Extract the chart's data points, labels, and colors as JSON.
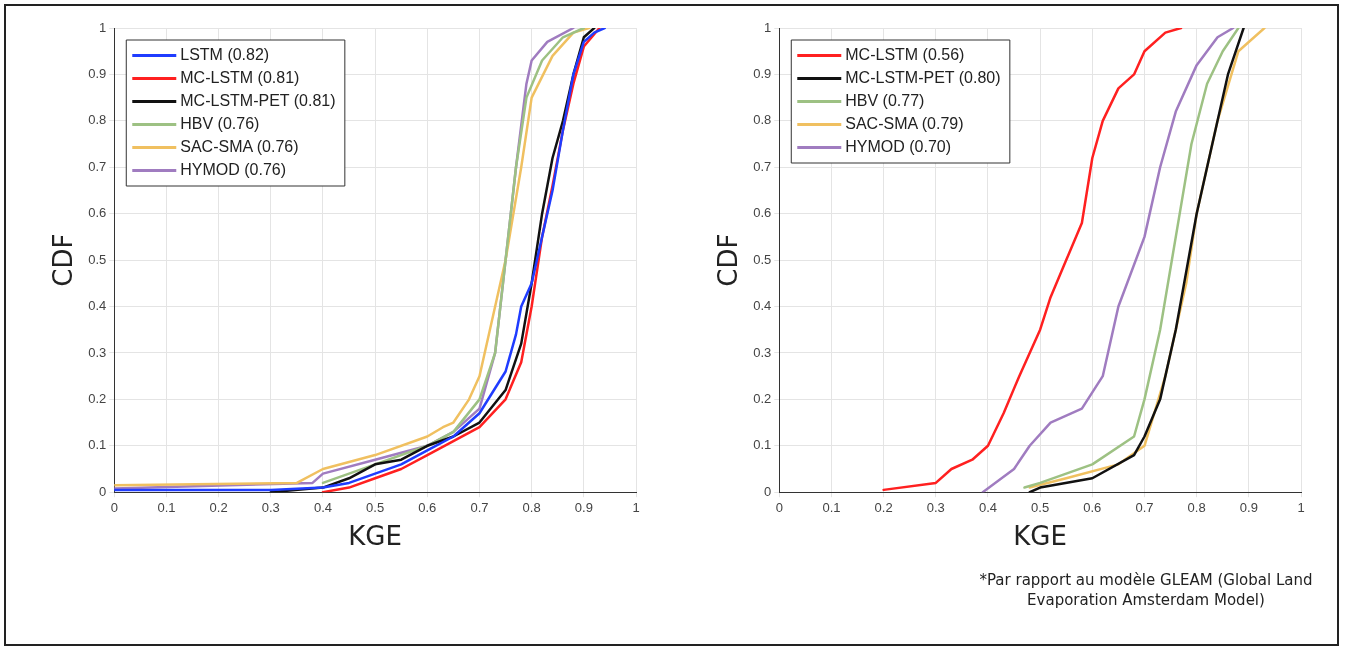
{
  "chart_data": [
    {
      "type": "line",
      "xlabel": "KGE",
      "ylabel": "CDF",
      "xlim": [
        0,
        1
      ],
      "ylim": [
        0,
        1
      ],
      "xticks": [
        0,
        0.1,
        0.2,
        0.3,
        0.4,
        0.5,
        0.6,
        0.7,
        0.8,
        0.9,
        1
      ],
      "yticks": [
        0,
        0.1,
        0.2,
        0.3,
        0.4,
        0.5,
        0.6,
        0.7,
        0.8,
        0.9,
        1
      ],
      "grid": true,
      "legend": "top left",
      "marker": "none",
      "line_style": "solid",
      "series": [
        {
          "name": "LSTM (0.82)",
          "color": "#1f3cff",
          "x": [
            0,
            0.3,
            0.4,
            0.45,
            0.5,
            0.55,
            0.6,
            0.65,
            0.7,
            0.75,
            0.77,
            0.78,
            0.8,
            0.82,
            0.84,
            0.86,
            0.88,
            0.9,
            0.92,
            0.94
          ],
          "values": [
            0.005,
            0.005,
            0.01,
            0.02,
            0.04,
            0.06,
            0.09,
            0.12,
            0.17,
            0.26,
            0.34,
            0.4,
            0.45,
            0.55,
            0.65,
            0.78,
            0.9,
            0.97,
            0.99,
            1
          ]
        },
        {
          "name": "MC-LSTM (0.81)",
          "color": "#ff2020",
          "x": [
            0.4,
            0.45,
            0.5,
            0.55,
            0.6,
            0.65,
            0.7,
            0.75,
            0.78,
            0.8,
            0.82,
            0.84,
            0.86,
            0.88,
            0.9,
            0.93
          ],
          "values": [
            0,
            0.01,
            0.03,
            0.05,
            0.08,
            0.11,
            0.14,
            0.2,
            0.28,
            0.4,
            0.55,
            0.66,
            0.78,
            0.88,
            0.96,
            1
          ]
        },
        {
          "name": "MC-LSTM-PET (0.81)",
          "color": "#111111",
          "x": [
            0.3,
            0.4,
            0.45,
            0.5,
            0.55,
            0.6,
            0.65,
            0.7,
            0.75,
            0.78,
            0.8,
            0.82,
            0.84,
            0.86,
            0.88,
            0.9,
            0.92
          ],
          "values": [
            0,
            0.01,
            0.03,
            0.06,
            0.07,
            0.1,
            0.12,
            0.15,
            0.22,
            0.32,
            0.45,
            0.6,
            0.72,
            0.8,
            0.9,
            0.98,
            1
          ]
        },
        {
          "name": "HBV (0.76)",
          "color": "#9dc183",
          "x": [
            0.4,
            0.5,
            0.6,
            0.65,
            0.7,
            0.73,
            0.75,
            0.77,
            0.79,
            0.82,
            0.86,
            0.9
          ],
          "values": [
            0.02,
            0.06,
            0.1,
            0.13,
            0.2,
            0.3,
            0.5,
            0.7,
            0.85,
            0.93,
            0.98,
            1
          ]
        },
        {
          "name": "SAC-SMA (0.76)",
          "color": "#f0c060",
          "x": [
            0,
            0.35,
            0.4,
            0.5,
            0.6,
            0.63,
            0.65,
            0.68,
            0.7,
            0.72,
            0.75,
            0.78,
            0.8,
            0.84,
            0.88,
            0.91
          ],
          "values": [
            0.015,
            0.02,
            0.05,
            0.08,
            0.12,
            0.14,
            0.15,
            0.2,
            0.25,
            0.35,
            0.5,
            0.7,
            0.85,
            0.94,
            0.99,
            1
          ]
        },
        {
          "name": "HYMOD (0.76)",
          "color": "#a07cc0",
          "x": [
            0,
            0.38,
            0.4,
            0.5,
            0.6,
            0.65,
            0.7,
            0.73,
            0.75,
            0.77,
            0.79,
            0.8,
            0.83,
            0.88
          ],
          "values": [
            0.008,
            0.02,
            0.04,
            0.07,
            0.1,
            0.13,
            0.18,
            0.3,
            0.5,
            0.7,
            0.88,
            0.93,
            0.97,
            1
          ]
        }
      ]
    },
    {
      "type": "line",
      "xlabel": "KGE",
      "ylabel": "CDF",
      "xlim": [
        0,
        1
      ],
      "ylim": [
        0,
        1
      ],
      "xticks": [
        0,
        0.1,
        0.2,
        0.3,
        0.4,
        0.5,
        0.6,
        0.7,
        0.8,
        0.9,
        1
      ],
      "yticks": [
        0,
        0.1,
        0.2,
        0.3,
        0.4,
        0.5,
        0.6,
        0.7,
        0.8,
        0.9,
        1
      ],
      "grid": true,
      "legend": "top left",
      "marker": "none",
      "line_style": "solid",
      "annotations": [
        "*Par rapport au modèle GLEAM (Global Land Evaporation Amsterdam Model)"
      ],
      "series": [
        {
          "name": "MC-LSTM (0.56)",
          "color": "#ff2020",
          "x": [
            0.2,
            0.3,
            0.33,
            0.37,
            0.4,
            0.43,
            0.46,
            0.5,
            0.52,
            0.55,
            0.58,
            0.6,
            0.62,
            0.65,
            0.68,
            0.7,
            0.74,
            0.77
          ],
          "values": [
            0.005,
            0.02,
            0.05,
            0.07,
            0.1,
            0.17,
            0.25,
            0.35,
            0.42,
            0.5,
            0.58,
            0.72,
            0.8,
            0.87,
            0.9,
            0.95,
            0.99,
            1
          ]
        },
        {
          "name": "MC-LSTM-PET (0.80)",
          "color": "#111111",
          "x": [
            0.48,
            0.5,
            0.6,
            0.68,
            0.7,
            0.73,
            0.76,
            0.8,
            0.83,
            0.86,
            0.89
          ],
          "values": [
            0,
            0.01,
            0.03,
            0.08,
            0.12,
            0.2,
            0.35,
            0.6,
            0.75,
            0.9,
            1
          ]
        },
        {
          "name": "HBV (0.77)",
          "color": "#9dc183",
          "x": [
            0.47,
            0.5,
            0.6,
            0.68,
            0.7,
            0.73,
            0.76,
            0.79,
            0.82,
            0.85,
            0.88
          ],
          "values": [
            0.01,
            0.02,
            0.06,
            0.12,
            0.2,
            0.35,
            0.55,
            0.75,
            0.88,
            0.95,
            1
          ]
        },
        {
          "name": "SAC-SMA (0.79)",
          "color": "#f0c060",
          "x": [
            0.48,
            0.55,
            0.65,
            0.7,
            0.74,
            0.78,
            0.8,
            0.84,
            0.88,
            0.93
          ],
          "values": [
            0.01,
            0.03,
            0.06,
            0.1,
            0.25,
            0.45,
            0.6,
            0.8,
            0.95,
            1
          ]
        },
        {
          "name": "HYMOD (0.70)",
          "color": "#a07cc0",
          "x": [
            0.39,
            0.45,
            0.48,
            0.52,
            0.58,
            0.62,
            0.65,
            0.7,
            0.73,
            0.76,
            0.8,
            0.84,
            0.87
          ],
          "values": [
            0,
            0.05,
            0.1,
            0.15,
            0.18,
            0.25,
            0.4,
            0.55,
            0.7,
            0.82,
            0.92,
            0.98,
            1
          ]
        }
      ]
    }
  ]
}
